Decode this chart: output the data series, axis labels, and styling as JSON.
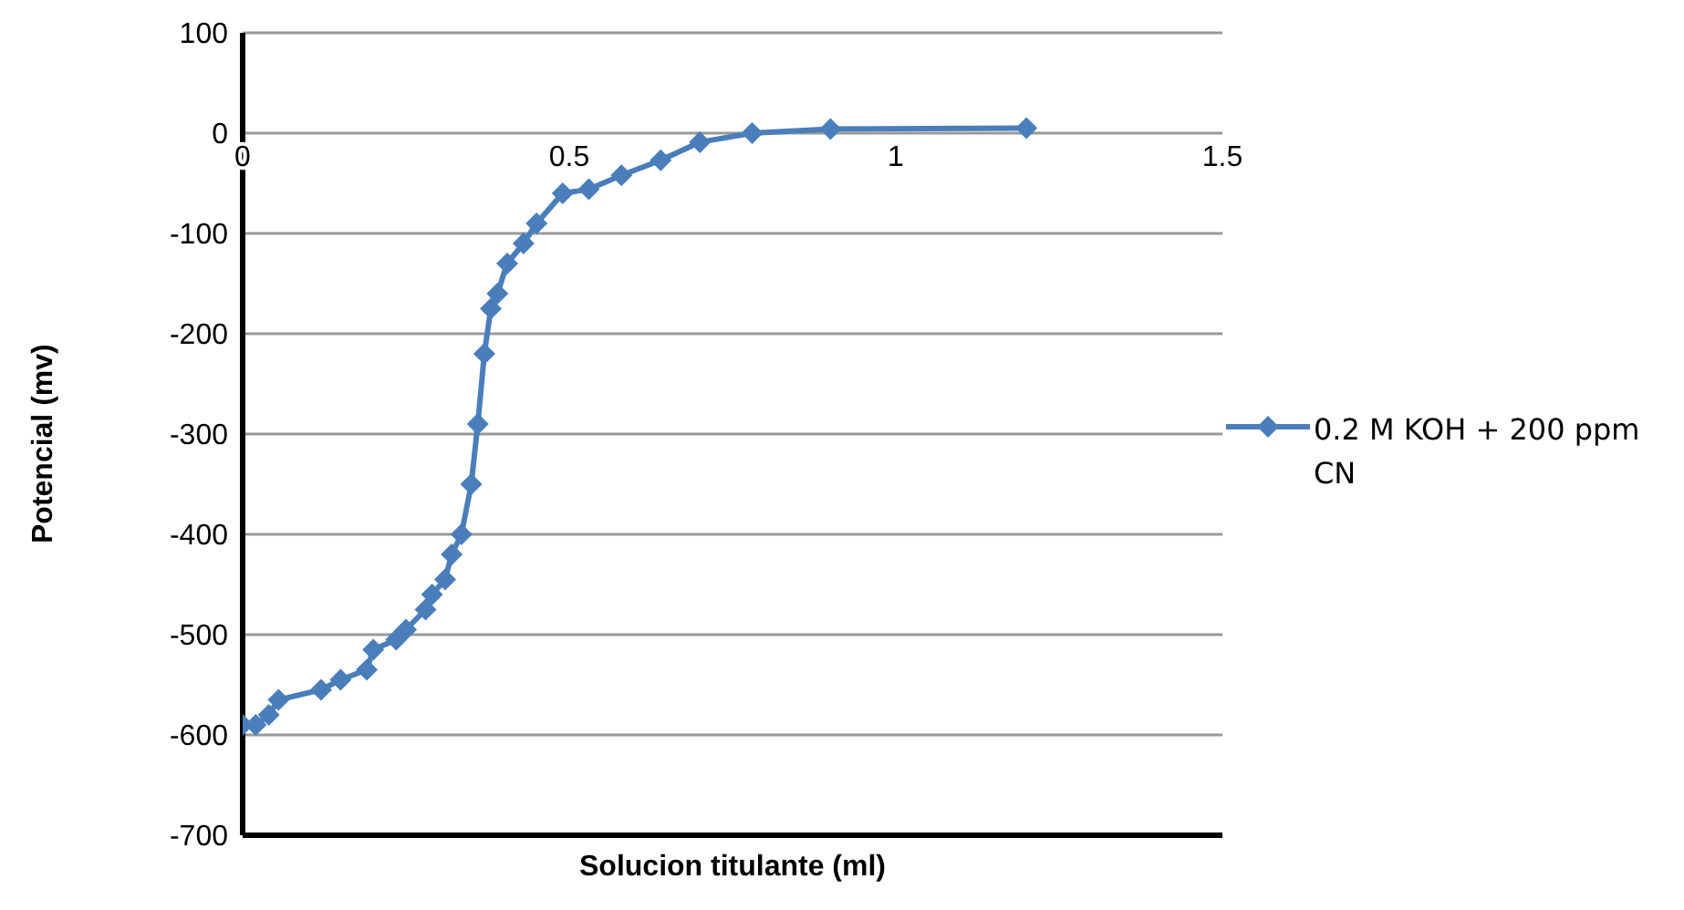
{
  "chart_data": {
    "type": "line",
    "xlabel": "Solucion titulante (ml)",
    "ylabel": "Potencial (mv)",
    "xlim": [
      0,
      1.5
    ],
    "xticks": [
      0,
      0.5,
      1,
      1.5
    ],
    "ylim": [
      -700,
      100
    ],
    "yticks": [
      -700,
      -600,
      -500,
      -400,
      -300,
      -200,
      -100,
      0,
      100
    ],
    "grid": "y",
    "legend": "right",
    "marker": "diamond",
    "line_style": "solid",
    "series": [
      {
        "name": "0.2 M KOH + 200 ppm CN",
        "color": "#4a7ebb",
        "x": [
          0,
          0.02,
          0.04,
          0.055,
          0.12,
          0.15,
          0.19,
          0.2,
          0.235,
          0.25,
          0.28,
          0.29,
          0.31,
          0.32,
          0.335,
          0.35,
          0.36,
          0.37,
          0.38,
          0.39,
          0.405,
          0.43,
          0.45,
          0.49,
          0.53,
          0.58,
          0.64,
          0.7,
          0.78,
          0.9,
          1.2
        ],
        "values": [
          -590,
          -590,
          -580,
          -565,
          -555,
          -545,
          -535,
          -515,
          -505,
          -495,
          -475,
          -460,
          -445,
          -420,
          -400,
          -350,
          -290,
          -220,
          -175,
          -160,
          -130,
          -110,
          -90,
          -60,
          -56,
          -42,
          -27,
          -9,
          0,
          4,
          5
        ]
      }
    ]
  }
}
